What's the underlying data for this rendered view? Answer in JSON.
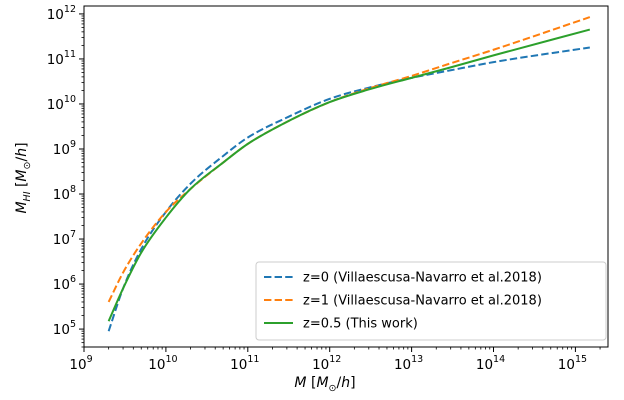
{
  "chart_data": {
    "type": "line",
    "xlabel": "M [M⊙/h]",
    "ylabel": "MHI [M⊙/h]",
    "x_scale": "log",
    "y_scale": "log",
    "xlim": [
      1000000000.0,
      2500000000000000.0
    ],
    "ylim": [
      40000.0,
      1500000000000.0
    ],
    "grid": false,
    "legend_position": "lower-right",
    "x_ticks": [
      {
        "base": "10",
        "exp": "9",
        "value": 1000000000.0
      },
      {
        "base": "10",
        "exp": "10",
        "value": 10000000000.0
      },
      {
        "base": "10",
        "exp": "11",
        "value": 100000000000.0
      },
      {
        "base": "10",
        "exp": "12",
        "value": 1000000000000.0
      },
      {
        "base": "10",
        "exp": "13",
        "value": 10000000000000.0
      },
      {
        "base": "10",
        "exp": "14",
        "value": 100000000000000.0
      },
      {
        "base": "10",
        "exp": "15",
        "value": 1000000000000000.0
      }
    ],
    "y_ticks": [
      {
        "base": "10",
        "exp": "5",
        "value": 100000.0
      },
      {
        "base": "10",
        "exp": "6",
        "value": 1000000.0
      },
      {
        "base": "10",
        "exp": "7",
        "value": 10000000.0
      },
      {
        "base": "10",
        "exp": "8",
        "value": 100000000.0
      },
      {
        "base": "10",
        "exp": "9",
        "value": 1000000000.0
      },
      {
        "base": "10",
        "exp": "10",
        "value": 10000000000.0
      },
      {
        "base": "10",
        "exp": "11",
        "value": 100000000000.0
      },
      {
        "base": "10",
        "exp": "12",
        "value": 1000000000000.0
      }
    ],
    "series": [
      {
        "name": "z=0 (Villaescusa-Navarro et al.2018)",
        "color": "#1f77b4",
        "dash": "dashed",
        "x": [
          2000000000.0,
          3000000000.0,
          5000000000.0,
          10000000000.0,
          20000000000.0,
          50000000000.0,
          100000000000.0,
          300000000000.0,
          1000000000000.0,
          3000000000000.0,
          10000000000000.0,
          30000000000000.0,
          100000000000000.0,
          1500000000000000.0
        ],
        "y": [
          90000.0,
          800000.0,
          6000000.0,
          40000000.0,
          170000000.0,
          700000000.0,
          1800000000.0,
          5000000000.0,
          13000000000.0,
          23000000000.0,
          38000000000.0,
          56000000000.0,
          85000000000.0,
          180000000000.0
        ]
      },
      {
        "name": "z=1 (Villaescusa-Navarro et al.2018)",
        "color": "#ff7f0e",
        "dash": "dashed",
        "x": [
          2000000000.0,
          3000000000.0,
          5000000000.0,
          10000000000.0,
          20000000000.0,
          50000000000.0,
          100000000000.0,
          300000000000.0,
          1000000000000.0,
          3000000000000.0,
          10000000000000.0,
          30000000000000.0,
          100000000000000.0,
          1500000000000000.0
        ],
        "y": [
          400000.0,
          1800000.0,
          8000000.0,
          40000000.0,
          130000000.0,
          500000000.0,
          1300000000.0,
          4000000000.0,
          11000000000.0,
          22000000000.0,
          42000000000.0,
          80000000000.0,
          160000000000.0,
          850000000000.0
        ]
      },
      {
        "name": "z=0.5 (This work)",
        "color": "#2ca02c",
        "dash": "solid",
        "x": [
          2000000000.0,
          3000000000.0,
          5000000000.0,
          10000000000.0,
          20000000000.0,
          50000000000.0,
          100000000000.0,
          300000000000.0,
          1000000000000.0,
          3000000000000.0,
          10000000000000.0,
          30000000000000.0,
          100000000000000.0,
          1500000000000000.0
        ],
        "y": [
          150000.0,
          800000.0,
          5000000.0,
          30000000.0,
          130000000.0,
          500000000.0,
          1300000000.0,
          4000000000.0,
          11000000000.0,
          21000000000.0,
          38000000000.0,
          65000000000.0,
          120000000000.0,
          450000000000.0
        ]
      }
    ]
  }
}
